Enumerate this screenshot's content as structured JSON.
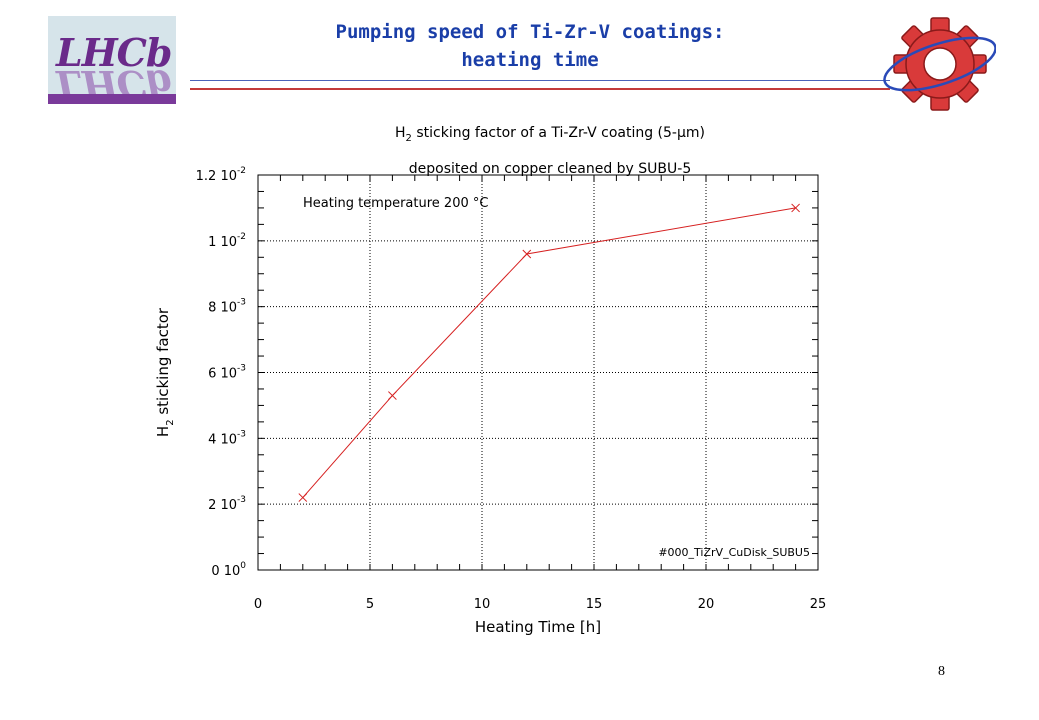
{
  "slide": {
    "title_line1": "Pumping speed of Ti-Zr-V coatings:",
    "title_line2": "heating time",
    "logo_text": "LHCb",
    "page_number": "8",
    "colors": {
      "title": "#1a3ea8",
      "logo_bg": "#d6e4ea",
      "logo_accent": "#6a2a8a",
      "gear": "#d93a3a"
    }
  },
  "chart_data": {
    "type": "line",
    "title_line1_pre": "H",
    "title_line1_sub": "2",
    "title_line1_post": " sticking factor of a Ti-Zr-V coating (5-μm)",
    "title_line2": "deposited on copper cleaned by SUBU-5",
    "annotation": "Heating temperature 200 °C",
    "footnote": "#000_TiZrV_CuDisk_SUBU5",
    "xlabel": "Heating Time  [h]",
    "ylabel_pre": "H",
    "ylabel_sub": "2",
    "ylabel_post": " sticking factor",
    "xlim": [
      0,
      25
    ],
    "ylim": [
      0,
      0.012
    ],
    "x_ticks": [
      {
        "value": 0,
        "label": "0"
      },
      {
        "value": 5,
        "label": "5"
      },
      {
        "value": 10,
        "label": "10"
      },
      {
        "value": 15,
        "label": "15"
      },
      {
        "value": 20,
        "label": "20"
      },
      {
        "value": 25,
        "label": "25"
      }
    ],
    "y_ticks": [
      {
        "value": 0,
        "mant": "0 10",
        "exp": "0"
      },
      {
        "value": 0.002,
        "mant": "2 10",
        "exp": "-3"
      },
      {
        "value": 0.004,
        "mant": "4 10",
        "exp": "-3"
      },
      {
        "value": 0.006,
        "mant": "6 10",
        "exp": "-3"
      },
      {
        "value": 0.008,
        "mant": "8 10",
        "exp": "-3"
      },
      {
        "value": 0.01,
        "mant": "1 10",
        "exp": "-2"
      },
      {
        "value": 0.012,
        "mant": "1.2 10",
        "exp": "-2"
      }
    ],
    "grid": true,
    "series": [
      {
        "color": "#d62020",
        "marker": "x",
        "x": [
          2,
          6,
          12,
          24
        ],
        "y": [
          0.0022,
          0.0053,
          0.0096,
          0.011
        ]
      }
    ]
  }
}
